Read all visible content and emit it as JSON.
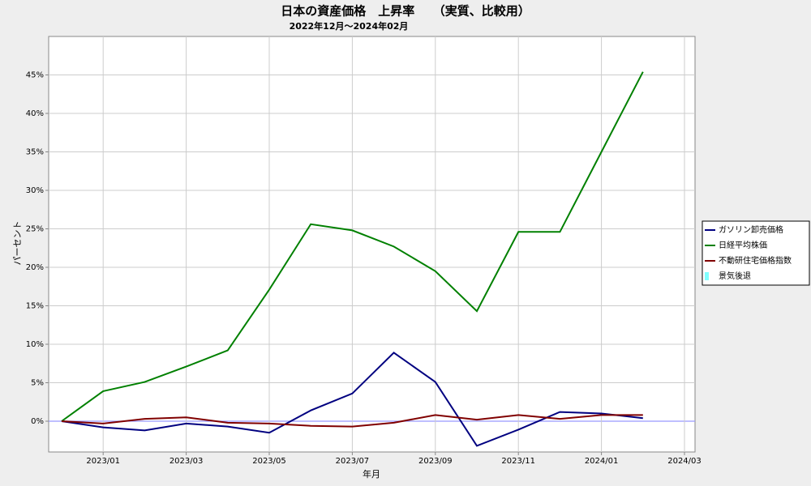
{
  "chart_data": {
    "type": "line",
    "title": "日本の資産価格　上昇率　　（実質、比較用）",
    "subtitle": "2022年12月〜2024年02月",
    "xlabel": "年月",
    "ylabel": "パーセント",
    "x": [
      "2022/12",
      "2023/01",
      "2023/02",
      "2023/03",
      "2023/04",
      "2023/05",
      "2023/06",
      "2023/07",
      "2023/08",
      "2023/09",
      "2023/10",
      "2023/11",
      "2023/12",
      "2024/01",
      "2024/02"
    ],
    "series": [
      {
        "name": "ガソリン卸売価格",
        "color": "#000080",
        "values": [
          0,
          -0.8,
          -1.2,
          -0.3,
          -0.7,
          -1.5,
          1.4,
          3.6,
          8.9,
          5.1,
          -3.2,
          -1.1,
          1.2,
          1.0,
          0.4
        ]
      },
      {
        "name": "日経平均株価",
        "color": "#008000",
        "values": [
          0,
          3.9,
          5.1,
          7.1,
          9.2,
          17.1,
          25.6,
          24.8,
          22.7,
          19.5,
          14.3,
          24.6,
          24.6,
          35.0,
          45.4
        ]
      },
      {
        "name": "不動研住宅価格指数",
        "color": "#800000",
        "values": [
          0,
          -0.3,
          0.3,
          0.5,
          -0.2,
          -0.3,
          -0.6,
          -0.7,
          -0.2,
          0.8,
          0.2,
          0.8,
          0.3,
          0.8,
          0.8
        ]
      },
      {
        "name": "景気後退",
        "color": "#80ffff",
        "values": [
          null,
          null,
          null,
          null,
          null,
          null,
          null,
          null,
          null,
          null,
          null,
          null,
          null,
          null,
          null
        ]
      }
    ],
    "ylim": [
      -4,
      50
    ],
    "yticks": [
      {
        "value": 0,
        "label": "0%"
      },
      {
        "value": 5,
        "label": "5%"
      },
      {
        "value": 10,
        "label": "10%"
      },
      {
        "value": 15,
        "label": "15%"
      },
      {
        "value": 20,
        "label": "20%"
      },
      {
        "value": 25,
        "label": "25%"
      },
      {
        "value": 30,
        "label": "30%"
      },
      {
        "value": 35,
        "label": "35%"
      },
      {
        "value": 40,
        "label": "40%"
      },
      {
        "value": 45,
        "label": "45%"
      }
    ],
    "xticks": [
      "2023/01",
      "2023/03",
      "2023/05",
      "2023/07",
      "2023/09",
      "2023/11",
      "2024/01",
      "2024/03"
    ],
    "grid": true,
    "legend": "right"
  }
}
